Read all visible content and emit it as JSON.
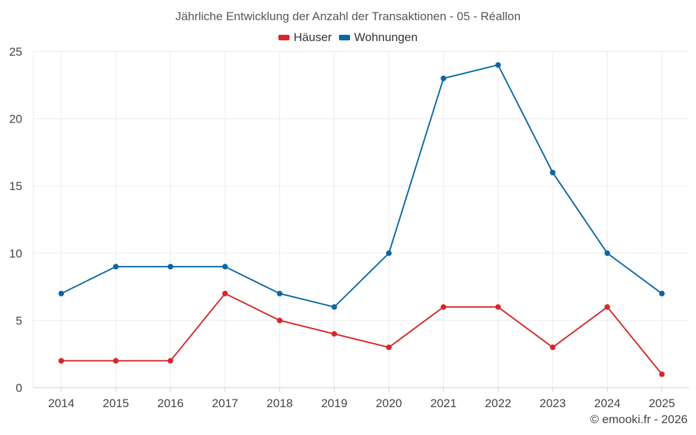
{
  "chart_data": {
    "type": "line",
    "title": "Jährliche Entwicklung der Anzahl der Transaktionen - 05 - Réallon",
    "xlabel": "",
    "ylabel": "",
    "categories": [
      "2014",
      "2015",
      "2016",
      "2017",
      "2018",
      "2019",
      "2020",
      "2021",
      "2022",
      "2023",
      "2024",
      "2025"
    ],
    "yticks": [
      "0",
      "5",
      "10",
      "15",
      "20",
      "25"
    ],
    "ylim": [
      0,
      25
    ],
    "grid": true,
    "legend_position": "top-center",
    "series": [
      {
        "name": "Häuser",
        "color": "#d62728",
        "values": [
          2,
          2,
          2,
          7,
          5,
          4,
          3,
          6,
          6,
          3,
          6,
          1
        ]
      },
      {
        "name": "Wohnungen",
        "color": "#0a67a3",
        "values": [
          7,
          9,
          9,
          9,
          7,
          6,
          10,
          23,
          24,
          16,
          10,
          7
        ]
      }
    ]
  },
  "credit": "© emooki.fr - 2026"
}
